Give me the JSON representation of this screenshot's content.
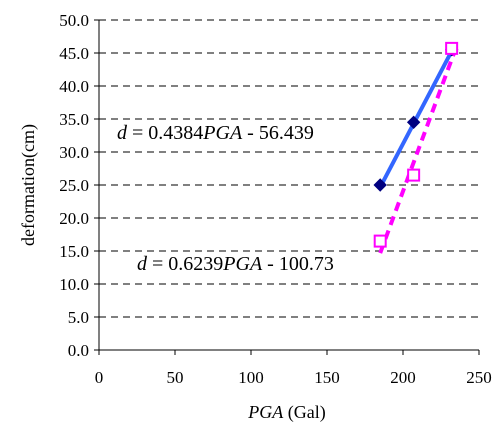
{
  "chart_data": {
    "type": "scatter",
    "xlabel": {
      "var": "PGA",
      "unit": " (Gal)"
    },
    "ylabel": "deformation(cm)",
    "xlim": [
      0,
      250
    ],
    "ylim": [
      0,
      50
    ],
    "x_ticks": [
      "0",
      "50",
      "100",
      "150",
      "200",
      "250"
    ],
    "y_ticks": [
      "0.0",
      "5.0",
      "10.0",
      "15.0",
      "20.0",
      "25.0",
      "30.0",
      "35.0",
      "40.0",
      "45.0",
      "50.0"
    ],
    "grid": "horizontal-dashed",
    "series": [
      {
        "marker": "filled-diamond",
        "marker_color": "#000080",
        "points": [
          [
            185,
            25.0
          ],
          [
            207,
            34.5
          ],
          [
            232,
            45.5
          ]
        ],
        "trendline": {
          "slope": 0.4384,
          "intercept": -56.439,
          "x_range": [
            185,
            232
          ],
          "style": "solid",
          "color": "#3366ff"
        },
        "equation": {
          "var": "d",
          "middle": " = 0.4384",
          "pga": "PGA",
          "tail": " - 56.439",
          "color": "#0000cc"
        }
      },
      {
        "marker": "open-square",
        "marker_color": "#ff00ff",
        "points": [
          [
            185,
            16.5
          ],
          [
            207,
            26.5
          ],
          [
            232,
            45.7
          ]
        ],
        "trendline": {
          "slope": 0.6239,
          "intercept": -100.73,
          "x_range": [
            185,
            234
          ],
          "style": "dashed",
          "color": "#ff00ff"
        },
        "equation": {
          "var": "d",
          "middle": " = 0.6239",
          "pga": "PGA",
          "tail": " - 100.73",
          "color": "#ff00ff"
        }
      }
    ]
  }
}
